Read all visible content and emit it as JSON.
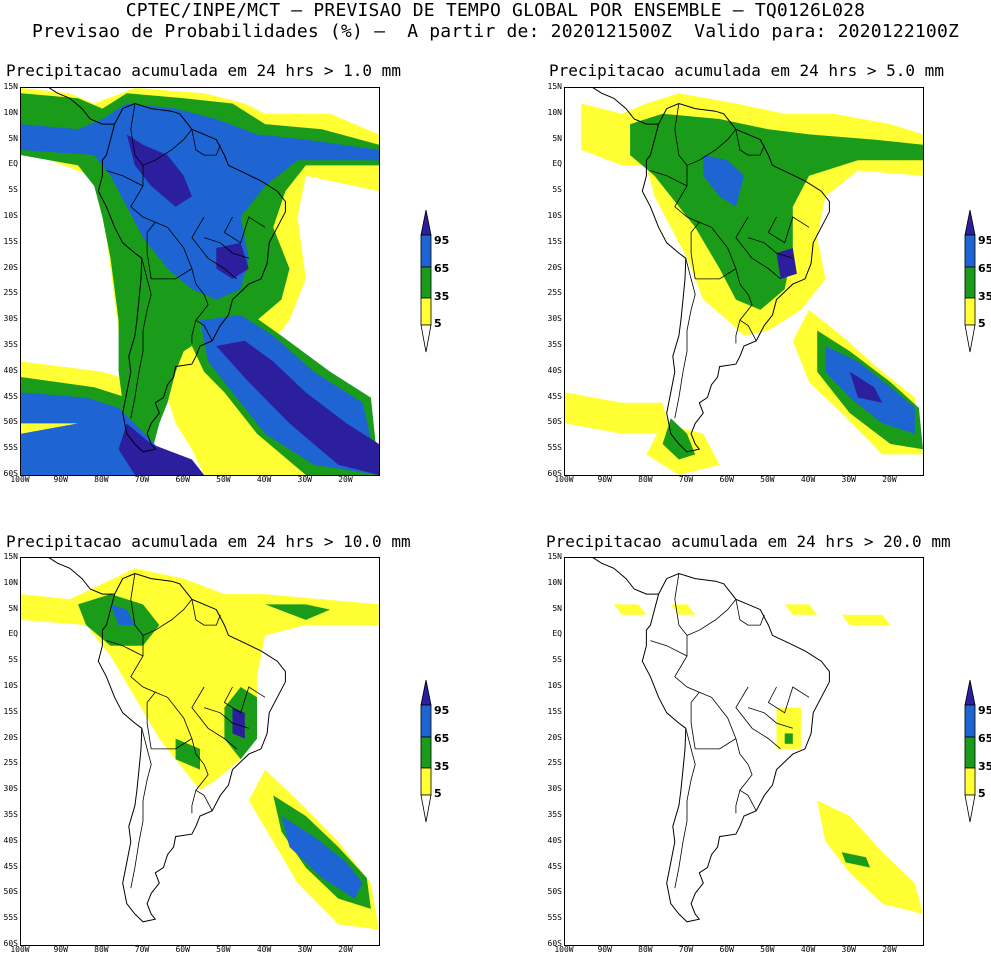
{
  "header": {
    "line1": "CPTEC/INPE/MCT — PREVISAO DE TEMPO GLOBAL POR ENSEMBLE — TQ0126L028",
    "line2": "Previsao de Probabilidades (%) —  A partir de: 2020121500Z  Valido para: 2020122100Z"
  },
  "colors": {
    "level5": "#ffff33",
    "level35": "#1a9c1a",
    "level65": "#1e64d2",
    "level95": "#2b1f9e",
    "coast": "#000000"
  },
  "axes": {
    "lat_labels": [
      "15N",
      "10N",
      "5N",
      "EQ",
      "5S",
      "10S",
      "15S",
      "20S",
      "25S",
      "30S",
      "35S",
      "40S",
      "45S",
      "50S",
      "55S",
      "60S"
    ],
    "lon_labels": [
      "100W",
      "90W",
      "80W",
      "70W",
      "60W",
      "50W",
      "40W",
      "30W",
      "20W"
    ]
  },
  "legend": {
    "labels": [
      "95",
      "65",
      "35",
      "5"
    ]
  },
  "panels": [
    {
      "title": "Precipitacao acumulada em 24 hrs > 1.0 mm"
    },
    {
      "title": "Precipitacao acumulada em 24 hrs > 5.0 mm"
    },
    {
      "title": "Precipitacao acumulada em 24 hrs > 10.0 mm"
    },
    {
      "title": "Precipitacao acumulada em 24 hrs > 20.0 mm"
    }
  ]
}
